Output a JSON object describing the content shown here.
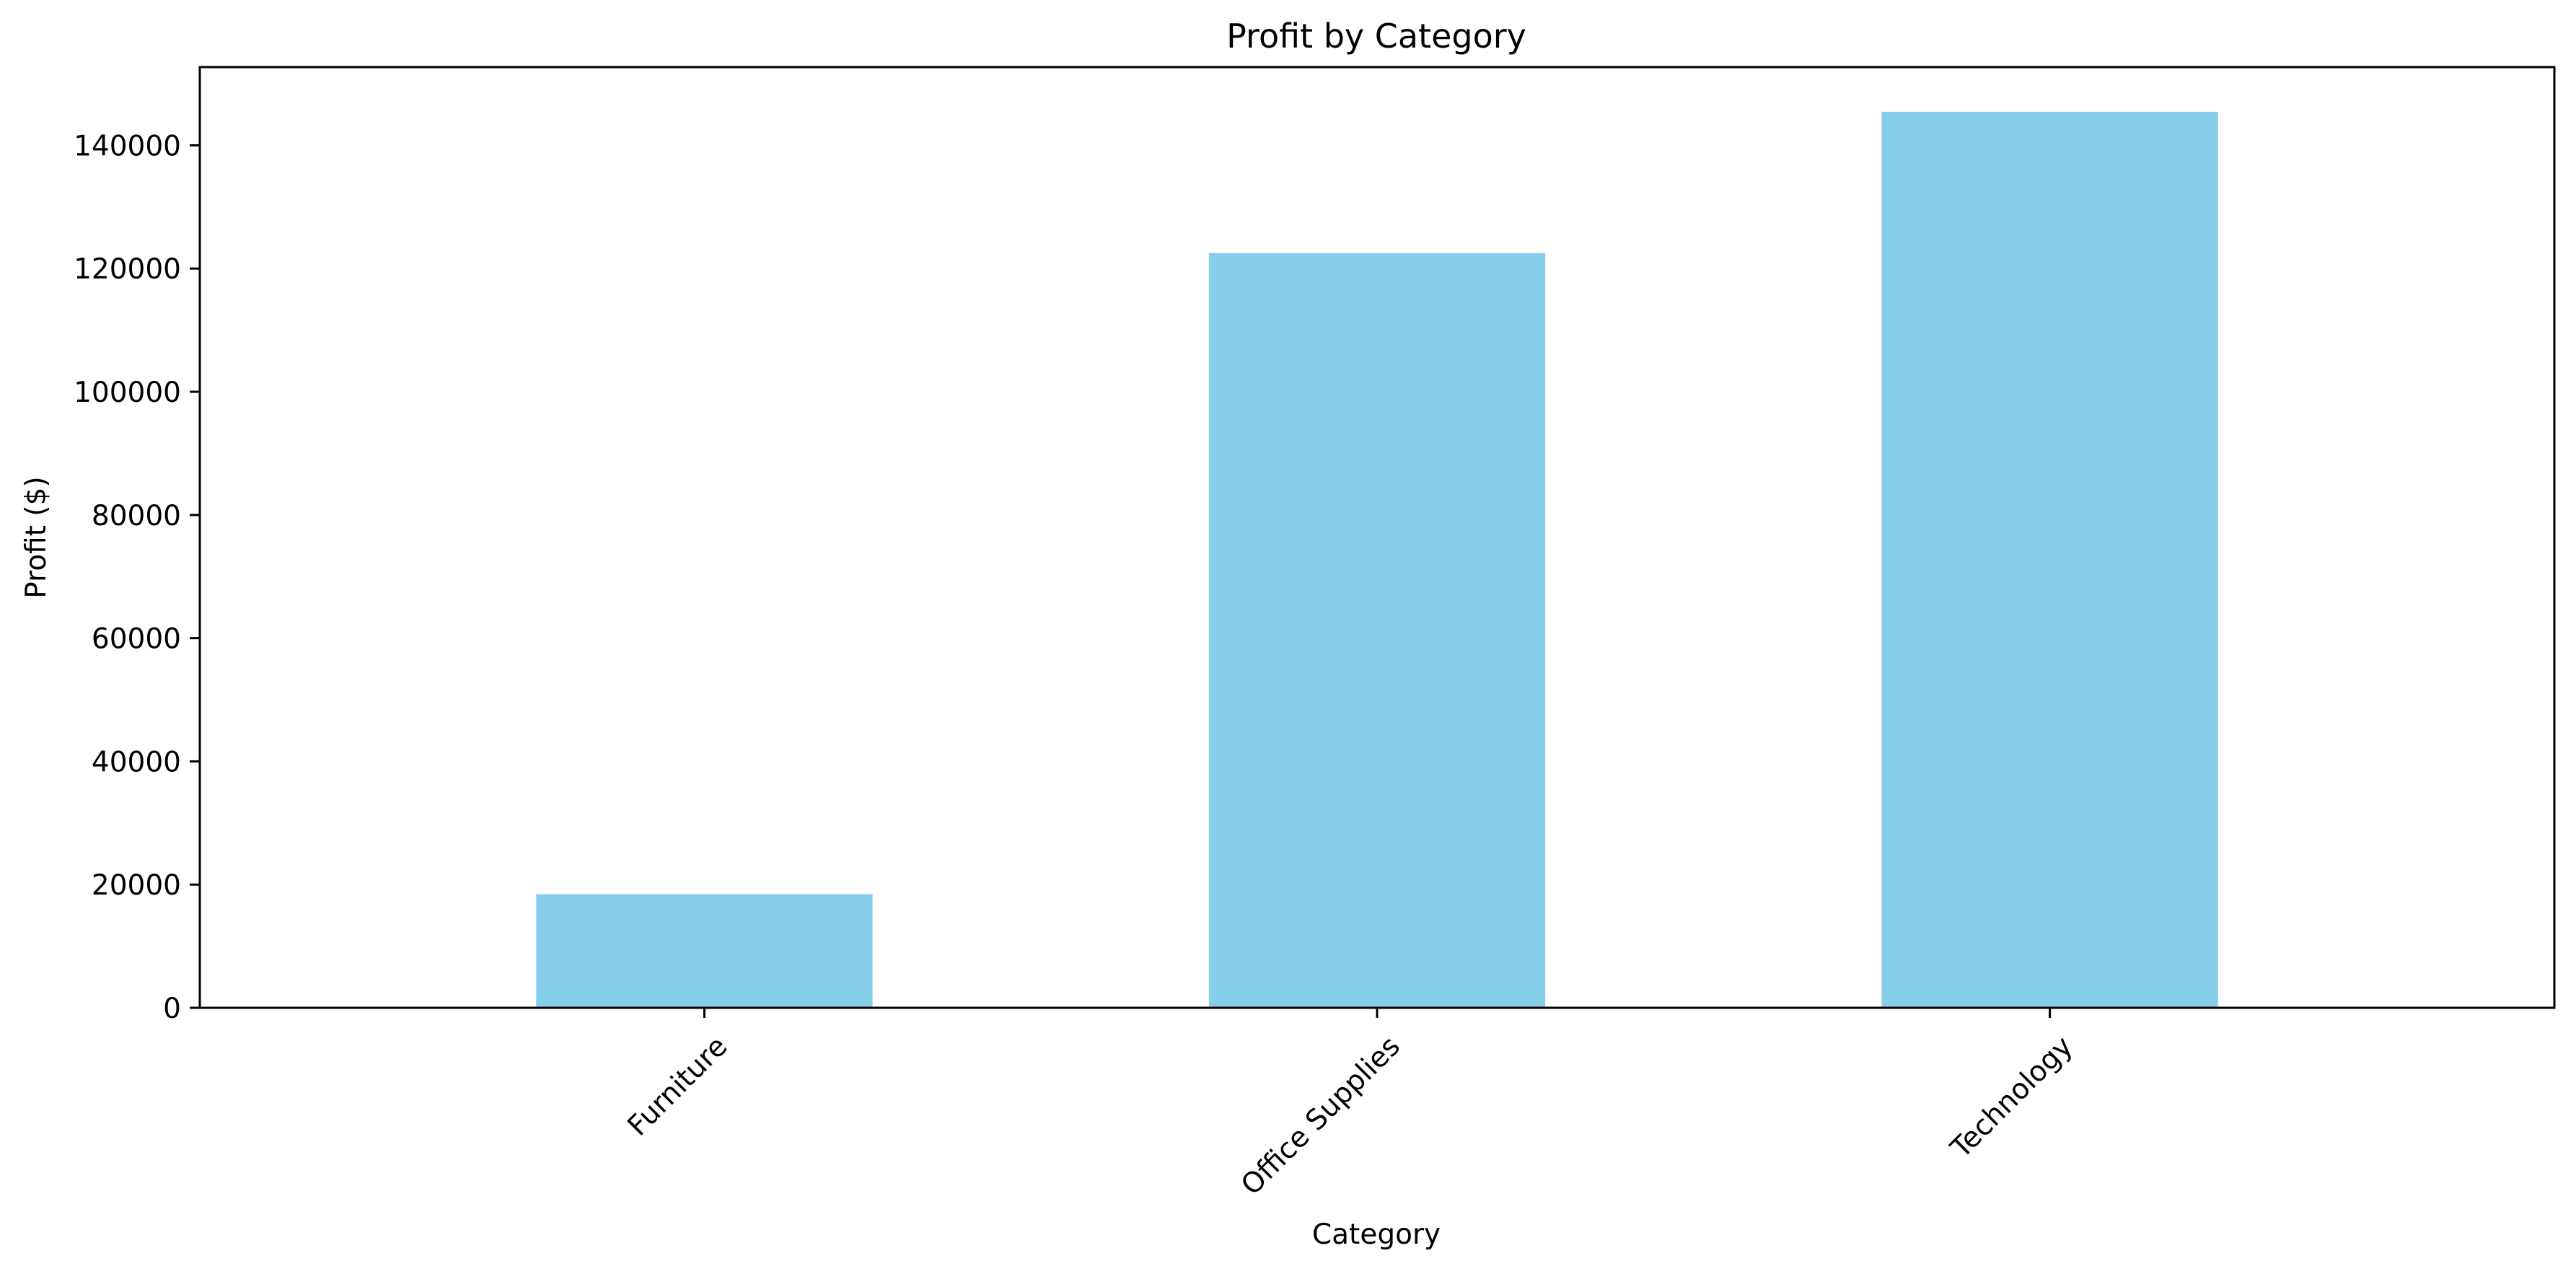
{
  "chart_data": {
    "type": "bar",
    "title": "Profit by Category",
    "xlabel": "Category",
    "ylabel": "Profit ($)",
    "categories": [
      "Furniture",
      "Office Supplies",
      "Technology"
    ],
    "values": [
      18450,
      122500,
      145450
    ],
    "ylim": [
      0,
      152700
    ],
    "yticks": [
      0,
      20000,
      40000,
      60000,
      80000,
      100000,
      120000,
      140000
    ],
    "bar_color": "#87ceeb",
    "grid": false,
    "legend": "none"
  }
}
